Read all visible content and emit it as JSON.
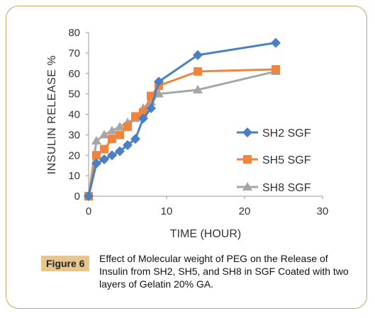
{
  "chart_data": {
    "type": "line",
    "xlabel": "TIME (HOUR)",
    "ylabel": "INSULIN RELEASE %",
    "xlim": [
      0,
      30
    ],
    "ylim": [
      0,
      80
    ],
    "xticks": [
      "0",
      "10",
      "20",
      "30"
    ],
    "yticks": [
      "0",
      "10",
      "20",
      "30",
      "40",
      "50",
      "60",
      "70",
      "80"
    ],
    "grid": false,
    "legend_position": "right",
    "series": [
      {
        "name": "SH2 SGF",
        "color": "#4a7fc1",
        "marker": "diamond",
        "x": [
          0,
          1,
          2,
          3,
          4,
          5,
          6,
          7,
          8,
          9,
          14,
          24
        ],
        "y": [
          0,
          16,
          18,
          20,
          22,
          25,
          28,
          38,
          43,
          56,
          69,
          75
        ]
      },
      {
        "name": "SH5 SGF",
        "color": "#f0843c",
        "marker": "square",
        "x": [
          0,
          1,
          2,
          3,
          4,
          5,
          6,
          7,
          8,
          9,
          14,
          24
        ],
        "y": [
          0,
          20,
          23,
          28,
          30,
          34,
          39,
          41,
          49,
          54,
          61,
          62
        ]
      },
      {
        "name": "SH8 SGF",
        "color": "#a6a6a6",
        "marker": "triangle",
        "x": [
          0,
          1,
          2,
          3,
          4,
          5,
          6,
          7,
          8,
          9,
          14,
          24
        ],
        "y": [
          0,
          27,
          30,
          32,
          34,
          36,
          38,
          43,
          46,
          50,
          52,
          61
        ]
      }
    ]
  },
  "caption": {
    "label": "Figure 6",
    "text": "Effect of Molecular weight of PEG on the Release of Insulin from SH2, SH5, and SH8 in SGF Coated with two layers of Gelatin 20% GA."
  }
}
